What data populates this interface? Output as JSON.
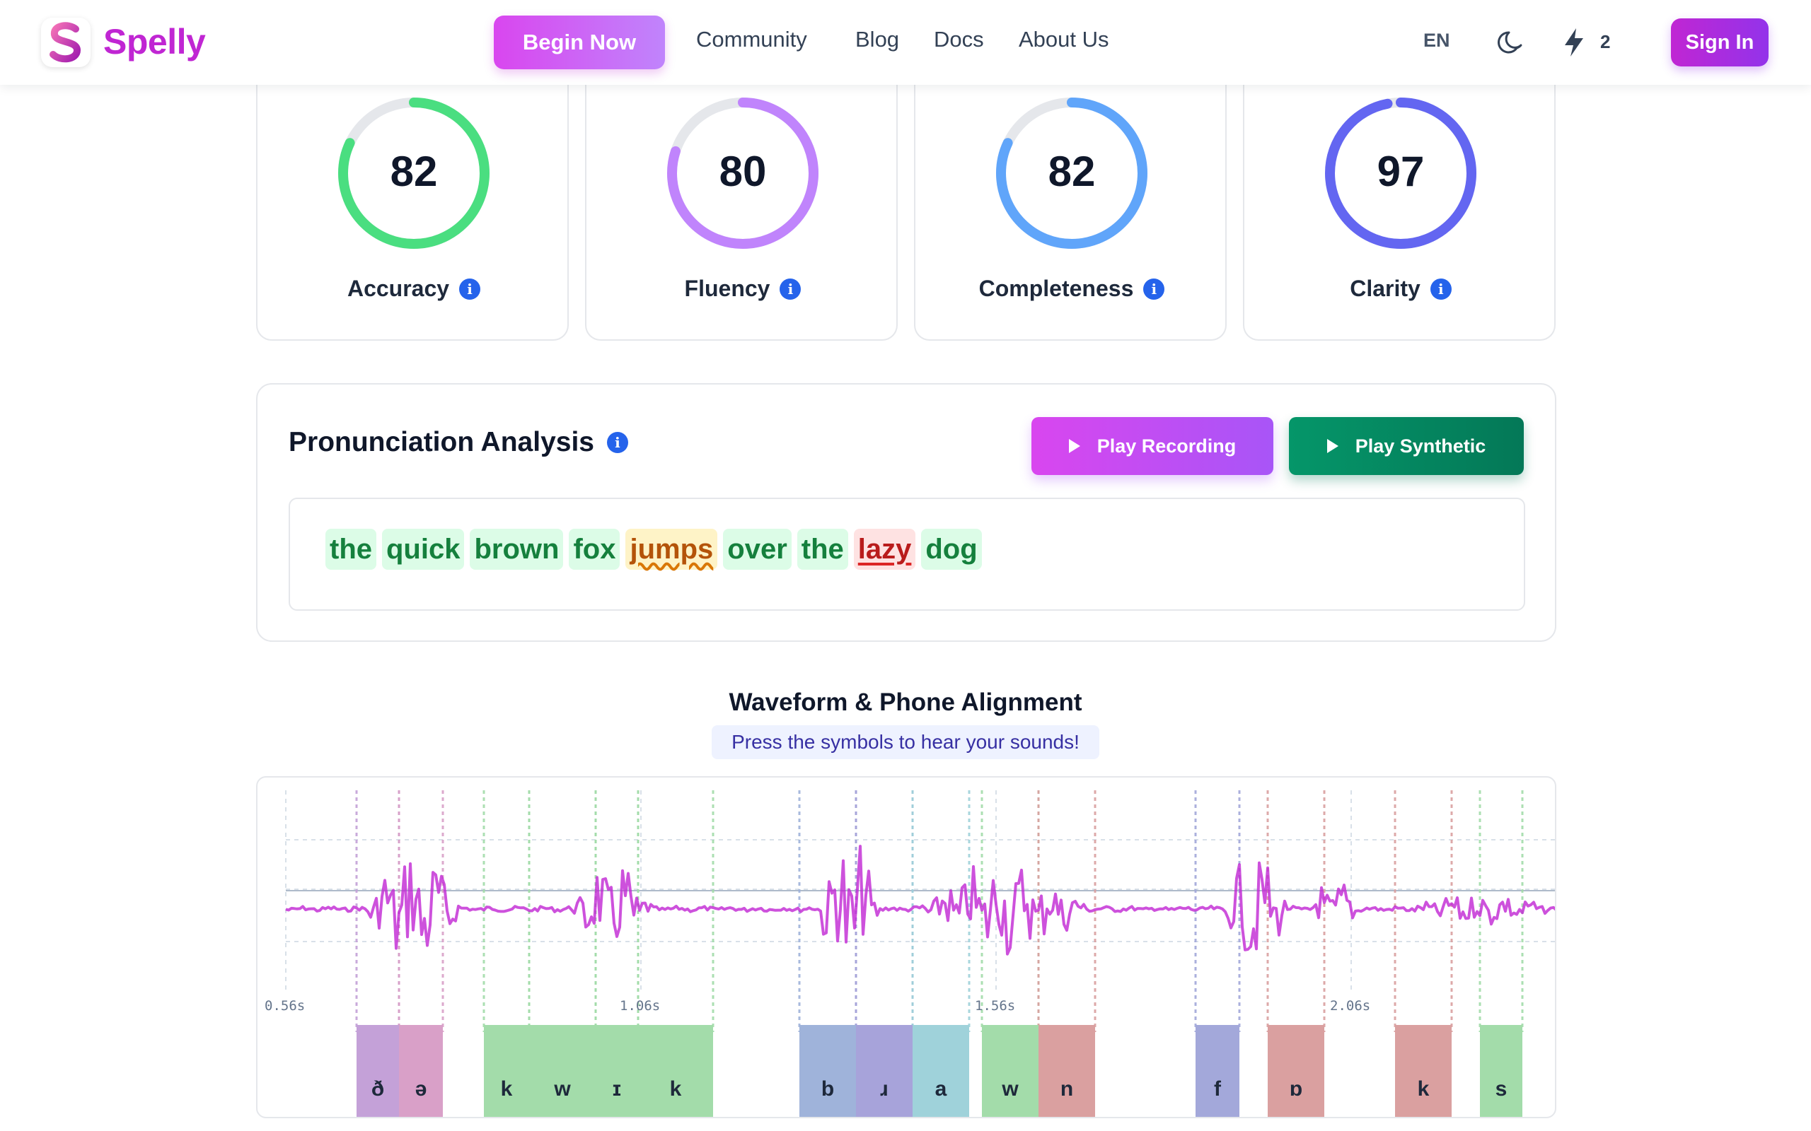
{
  "nav": {
    "brand": "Spelly",
    "begin_label": "Begin Now",
    "links": [
      "Community",
      "Blog",
      "Docs",
      "About Us"
    ],
    "language": "EN",
    "credits": "2",
    "signin_label": "Sign In",
    "colors": {
      "brand": "#c026d3",
      "button_gradient": [
        "#d946ef",
        "#c084fc"
      ]
    }
  },
  "scores": [
    {
      "label": "Accuracy",
      "value": "82",
      "percent": 82,
      "color": "#4ade80"
    },
    {
      "label": "Fluency",
      "value": "80",
      "percent": 80,
      "color": "#c084fc"
    },
    {
      "label": "Completeness",
      "value": "82",
      "percent": 82,
      "color": "#60a5fa"
    },
    {
      "label": "Clarity",
      "value": "97",
      "percent": 97,
      "color": "#6366f1"
    }
  ],
  "analysis": {
    "title": "Pronunciation Analysis",
    "play_recording": "Play Recording",
    "play_synthetic": "Play Synthetic",
    "words": [
      {
        "text": "the",
        "status": "good"
      },
      {
        "text": "quick",
        "status": "good"
      },
      {
        "text": "brown",
        "status": "good"
      },
      {
        "text": "fox",
        "status": "good"
      },
      {
        "text": "jumps",
        "status": "mid"
      },
      {
        "text": "over",
        "status": "good"
      },
      {
        "text": "the",
        "status": "good"
      },
      {
        "text": "lazy",
        "status": "bad"
      },
      {
        "text": "dog",
        "status": "good"
      }
    ]
  },
  "waveform": {
    "title": "Waveform & Phone Alignment",
    "hint": "Press the symbols to hear your sounds!",
    "time_ticks": [
      "0.56s",
      "1.06s",
      "1.56s",
      "2.06s"
    ],
    "phones": [
      {
        "symbol": "ð",
        "color": "#c4a1d8"
      },
      {
        "symbol": "ə",
        "color": "#d9a0c8"
      },
      {
        "symbol": "k",
        "color": "#a3dcaa"
      },
      {
        "symbol": "w",
        "color": "#a3dcaa"
      },
      {
        "symbol": "ɪ",
        "color": "#a3dcaa"
      },
      {
        "symbol": "k",
        "color": "#a3dcaa"
      },
      {
        "symbol": "b",
        "color": "#9fb3da"
      },
      {
        "symbol": "ɹ",
        "color": "#a7a3da"
      },
      {
        "symbol": "a",
        "color": "#9fd2da"
      },
      {
        "symbol": "w",
        "color": "#a3dcaa"
      },
      {
        "symbol": "n",
        "color": "#daa0a0"
      },
      {
        "symbol": "f",
        "color": "#a3a8da"
      },
      {
        "symbol": "ɒ",
        "color": "#daa0a0"
      },
      {
        "symbol": "k",
        "color": "#daa0a0"
      },
      {
        "symbol": "s",
        "color": "#a3dcaa"
      }
    ],
    "wave_color": "#c026d3"
  }
}
